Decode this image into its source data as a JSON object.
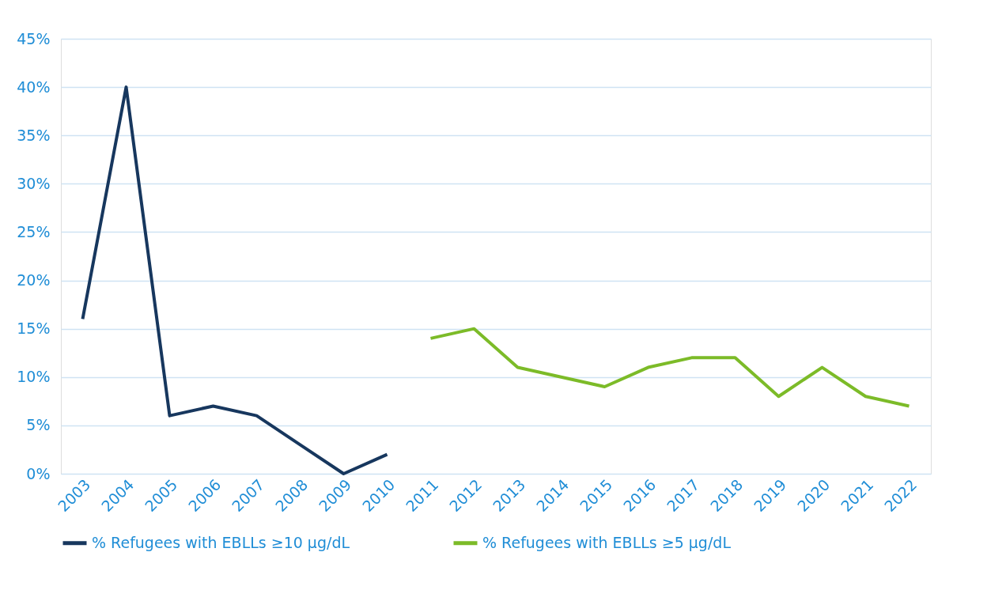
{
  "chart_data": {
    "type": "line",
    "categories": [
      "2003",
      "2004",
      "2005",
      "2006",
      "2007",
      "2008",
      "2009",
      "2010",
      "2011",
      "2012",
      "2013",
      "2014",
      "2015",
      "2016",
      "2017",
      "2018",
      "2019",
      "2020",
      "2021",
      "2022"
    ],
    "series": [
      {
        "name": "% Refugees with EBLLs ≥10 µg/dL",
        "color": "#17375e",
        "values": [
          16,
          40,
          6,
          7,
          6,
          3,
          0,
          2,
          null,
          null,
          null,
          null,
          null,
          null,
          null,
          null,
          null,
          null,
          null,
          null
        ]
      },
      {
        "name": "% Refugees with EBLLs ≥5 µg/dL",
        "color": "#7cbb28",
        "values": [
          null,
          null,
          null,
          null,
          null,
          null,
          null,
          null,
          14,
          15,
          11,
          10,
          9,
          11,
          12,
          12,
          8,
          11,
          8,
          7
        ]
      }
    ],
    "ylim": [
      0,
      45
    ],
    "yticks": [
      {
        "value": 0,
        "label": "0%"
      },
      {
        "value": 5,
        "label": "5%"
      },
      {
        "value": 10,
        "label": "10%"
      },
      {
        "value": 15,
        "label": "15%"
      },
      {
        "value": 20,
        "label": "20%"
      },
      {
        "value": 25,
        "label": "25%"
      },
      {
        "value": 30,
        "label": "30%"
      },
      {
        "value": 35,
        "label": "35%"
      },
      {
        "value": 40,
        "label": "40%"
      },
      {
        "value": 45,
        "label": "45%"
      }
    ],
    "grid": "y",
    "legend": "bottom",
    "marker": "none",
    "line_style": "solid"
  }
}
